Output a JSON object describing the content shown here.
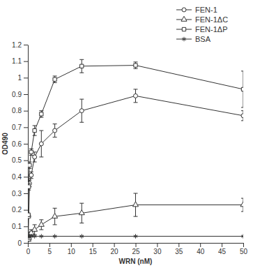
{
  "chart_data": {
    "type": "line",
    "x_label": "WRN (nM)",
    "y_label": "OD490",
    "x": [
      0.1,
      0.2,
      0.39,
      0.78,
      1.56,
      3.125,
      6.25,
      12.5,
      25,
      50
    ],
    "series": [
      {
        "name": "FEN-1",
        "color": "#333333",
        "marker": "circle",
        "values": [
          0.05,
          0.16,
          0.36,
          0.41,
          0.52,
          0.6,
          0.68,
          0.8,
          0.89,
          0.77
        ],
        "errors": [
          0.01,
          0.01,
          0.02,
          0.02,
          0.03,
          0.08,
          0.04,
          0.07,
          0.04,
          0.03
        ]
      },
      {
        "name": "FEN-1ΔC",
        "color": "#333333",
        "marker": "triangle",
        "values": [
          0.02,
          0.03,
          0.05,
          0.06,
          0.08,
          0.11,
          0.16,
          0.18,
          0.23,
          0.23
        ],
        "errors": [
          0.01,
          0.01,
          0.01,
          0.02,
          0.03,
          0.03,
          0.05,
          0.06,
          0.07,
          0.04
        ]
      },
      {
        "name": "FEN-1ΔP",
        "color": "#333333",
        "marker": "square",
        "values": [
          0.17,
          0.34,
          0.47,
          0.55,
          0.68,
          0.78,
          0.99,
          1.07,
          1.075,
          0.93
        ],
        "errors": [
          0.01,
          0.02,
          0.02,
          0.02,
          0.03,
          0.02,
          0.02,
          0.04,
          0.02,
          0.11
        ]
      },
      {
        "name": "BSA",
        "color": "#333333",
        "marker": "asterisk",
        "values": [
          0.04,
          0.04,
          0.04,
          0.04,
          0.04,
          0.04,
          0.04,
          0.04,
          0.04,
          0.04
        ]
      }
    ],
    "xlim": [
      0,
      50
    ],
    "xticks": [
      0,
      5,
      10,
      15,
      20,
      25,
      30,
      35,
      40,
      45,
      50
    ],
    "ylim": [
      0,
      1.2
    ],
    "yticks": [
      0,
      0.1,
      0.2,
      0.3,
      0.4,
      0.5,
      0.6,
      0.7,
      0.8,
      0.9,
      1,
      1.1,
      1.2
    ],
    "legend": "upper right"
  }
}
